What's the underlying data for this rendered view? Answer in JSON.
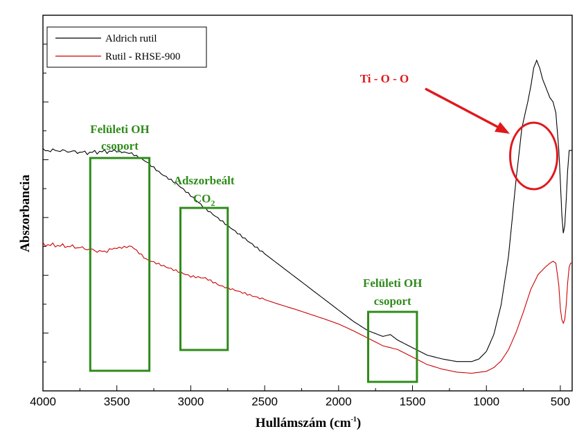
{
  "chart_data": {
    "type": "line",
    "xlabel": "Hullámszám (cm",
    "xlabel_sup": "-1",
    "xlabel_close": ")",
    "ylabel": "Abszorbancia",
    "xlim": [
      4000,
      420
    ],
    "x_reversed": true,
    "x_ticks": [
      4000,
      3500,
      3000,
      2500,
      2000,
      1500,
      1000,
      500
    ],
    "y_tick_labels_shown": false,
    "grid": false,
    "legend_position": "top-left",
    "series": [
      {
        "name": "Aldrich rutil",
        "color": "#000000",
        "x": [
          4000,
          3900,
          3800,
          3700,
          3600,
          3500,
          3400,
          3300,
          3200,
          3100,
          3000,
          2900,
          2800,
          2700,
          2600,
          2500,
          2400,
          2300,
          2200,
          2100,
          2000,
          1900,
          1800,
          1700,
          1650,
          1600,
          1500,
          1400,
          1300,
          1200,
          1100,
          1050,
          1000,
          950,
          900,
          850,
          800,
          760,
          720,
          700,
          680,
          660,
          640,
          620,
          600,
          570,
          550,
          530,
          510,
          500,
          490,
          480,
          470,
          460,
          450,
          440,
          430,
          420
        ],
        "y": [
          0.64,
          0.64,
          0.637,
          0.634,
          0.637,
          0.638,
          0.632,
          0.61,
          0.578,
          0.553,
          0.52,
          0.485,
          0.455,
          0.425,
          0.395,
          0.365,
          0.335,
          0.305,
          0.275,
          0.245,
          0.215,
          0.185,
          0.16,
          0.145,
          0.15,
          0.135,
          0.115,
          0.095,
          0.085,
          0.078,
          0.078,
          0.085,
          0.105,
          0.15,
          0.23,
          0.36,
          0.56,
          0.7,
          0.77,
          0.81,
          0.86,
          0.88,
          0.86,
          0.83,
          0.81,
          0.78,
          0.77,
          0.74,
          0.64,
          0.56,
          0.47,
          0.42,
          0.44,
          0.51,
          0.59,
          0.64,
          0.64,
          0.64
        ]
      },
      {
        "name": "Rutil - RHSE-900",
        "color": "#cc0000",
        "x": [
          4000,
          3900,
          3800,
          3700,
          3600,
          3500,
          3400,
          3300,
          3200,
          3100,
          3000,
          2900,
          2800,
          2700,
          2600,
          2500,
          2400,
          2300,
          2200,
          2100,
          2000,
          1900,
          1800,
          1700,
          1650,
          1600,
          1500,
          1400,
          1300,
          1200,
          1100,
          1000,
          950,
          900,
          850,
          800,
          750,
          700,
          650,
          600,
          570,
          550,
          530,
          510,
          500,
          490,
          480,
          470,
          460,
          450,
          440,
          430,
          420
        ],
        "y": [
          0.39,
          0.387,
          0.384,
          0.378,
          0.37,
          0.38,
          0.385,
          0.35,
          0.335,
          0.32,
          0.305,
          0.3,
          0.28,
          0.268,
          0.255,
          0.243,
          0.23,
          0.218,
          0.205,
          0.192,
          0.178,
          0.16,
          0.14,
          0.12,
          0.115,
          0.11,
          0.09,
          0.07,
          0.058,
          0.05,
          0.047,
          0.052,
          0.062,
          0.08,
          0.11,
          0.155,
          0.21,
          0.27,
          0.31,
          0.33,
          0.34,
          0.345,
          0.34,
          0.28,
          0.22,
          0.19,
          0.18,
          0.19,
          0.23,
          0.29,
          0.33,
          0.34,
          0.34
        ]
      }
    ],
    "annotations": {
      "boxes": [
        {
          "label_line1": "Felületi OH",
          "label_line2": "csoport",
          "x_from": 3680,
          "x_to": 3280
        },
        {
          "label_line1": "Adszorbeált",
          "label_line2": "CO",
          "label_sub": "2",
          "x_from": 3070,
          "x_to": 2750
        },
        {
          "label_line1": "Felületi OH",
          "label_line2": "csoport",
          "x_from": 1800,
          "x_to": 1470
        }
      ],
      "peak_label": "Ti - O - O",
      "peak_x": 680
    }
  }
}
